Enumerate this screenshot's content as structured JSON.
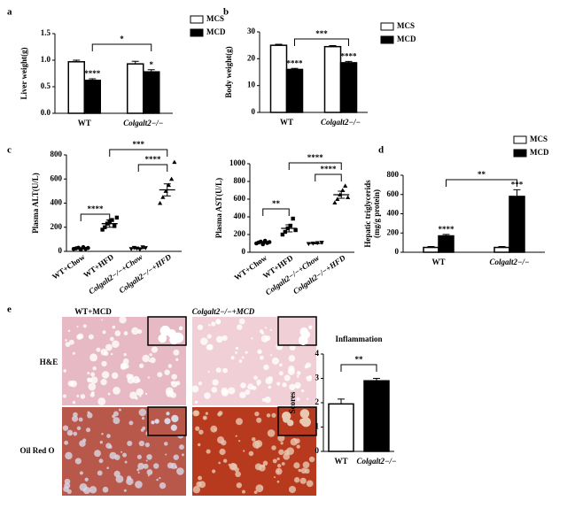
{
  "panel_labels": [
    "a",
    "b",
    "c",
    "d",
    "e"
  ],
  "histology": {
    "columns": [
      "WT+MCD",
      "Colgalt2−/−+MCD"
    ],
    "rows": [
      "H&E",
      "Oil Red O"
    ]
  },
  "chart_data": [
    {
      "type": "bar",
      "ylabel": "Liver weight(g)",
      "categories": [
        "WT",
        "Colgalt2−/−"
      ],
      "series": [
        {
          "name": "MCS",
          "color": "#ffffff",
          "values": [
            0.97,
            0.93
          ],
          "errors": [
            0.03,
            0.05
          ]
        },
        {
          "name": "MCD",
          "color": "#000000",
          "values": [
            0.62,
            0.78
          ],
          "errors": [
            0.03,
            0.04
          ]
        }
      ],
      "ylim": [
        0,
        1.5
      ],
      "yticks": [
        {
          "value": 0,
          "label": "0.0"
        },
        0.5,
        {
          "value": 1,
          "label": "1.0"
        },
        1.5
      ],
      "annotations": [
        "****",
        "*",
        "*"
      ],
      "legend": "top-right"
    },
    {
      "type": "bar",
      "ylabel": "Body weight(g)",
      "categories": [
        "WT",
        "Colgalt2−/−"
      ],
      "series": [
        {
          "name": "MCS",
          "color": "#ffffff",
          "values": [
            25,
            24.5
          ],
          "errors": [
            0.4,
            0.4
          ]
        },
        {
          "name": "MCD",
          "color": "#000000",
          "values": [
            16,
            18.5
          ],
          "errors": [
            0.4,
            0.5
          ]
        }
      ],
      "ylim": [
        0,
        30
      ],
      "yticks": [
        0,
        10,
        20,
        30
      ],
      "annotations": [
        "****",
        "****",
        "***"
      ],
      "legend": "top-right"
    },
    {
      "type": "scatter",
      "ylabel": "Plasma ALT(U/L)",
      "categories": [
        "WT+Chow",
        "WT+HFD",
        "Colgalt2−/−+Chow",
        "Colgalt2−/−+HFD"
      ],
      "points": [
        [
          20,
          25,
          30,
          15,
          35,
          20,
          28
        ],
        [
          180,
          200,
          230,
          250,
          260,
          210,
          280
        ],
        [
          20,
          30,
          25,
          15,
          35,
          28
        ],
        [
          400,
          450,
          500,
          550,
          600,
          740
        ]
      ],
      "means": [
        25,
        230,
        25,
        510
      ],
      "errors": [
        5,
        30,
        5,
        50
      ],
      "markers": [
        "circle",
        "square",
        "triangle-down",
        "triangle"
      ],
      "ylim": [
        0,
        800
      ],
      "yticks": [
        0,
        200,
        400,
        600,
        800
      ],
      "annotations": [
        "****",
        "****",
        "***"
      ]
    },
    {
      "type": "scatter",
      "ylabel": "Plasma AST(U/L)",
      "categories": [
        "WT+Chow",
        "WT+HFD",
        "Colgalt2−/−+Chow",
        "Colgalt2−/−+HFD"
      ],
      "points": [
        [
          100,
          110,
          120,
          90,
          130,
          105,
          115
        ],
        [
          200,
          230,
          270,
          300,
          380,
          250
        ],
        [
          95,
          100,
          105,
          110
        ],
        [
          560,
          600,
          650,
          700,
          750,
          620
        ]
      ],
      "means": [
        110,
        270,
        100,
        650
      ],
      "errors": [
        10,
        40,
        5,
        40
      ],
      "markers": [
        "circle",
        "square",
        "triangle-down",
        "triangle"
      ],
      "ylim": [
        0,
        1000
      ],
      "yticks": [
        0,
        200,
        400,
        600,
        800,
        1000
      ],
      "annotations": [
        "**",
        "****",
        "****"
      ]
    },
    {
      "type": "bar",
      "ylabel": [
        "Hepatic triglycerids",
        "(mg/g protein)"
      ],
      "categories": [
        "WT",
        "Colgalt2−/−"
      ],
      "series": [
        {
          "name": "MCS",
          "color": "#ffffff",
          "values": [
            50,
            50
          ],
          "errors": [
            10,
            10
          ]
        },
        {
          "name": "MCD",
          "color": "#000000",
          "values": [
            170,
            580
          ],
          "errors": [
            15,
            70
          ]
        }
      ],
      "ylim": [
        0,
        800
      ],
      "yticks": [
        0,
        200,
        400,
        600,
        800
      ],
      "annotations": [
        "****",
        "***",
        "**"
      ],
      "legend": "top-right"
    },
    {
      "type": "bar",
      "title": "Inflammation",
      "ylabel": "Scores",
      "categories": [
        "WT",
        "Colgalt2−/−"
      ],
      "values": [
        1.95,
        2.9
      ],
      "errors": [
        0.2,
        0.1
      ],
      "colors": [
        "#ffffff",
        "#000000"
      ],
      "ylim": [
        0,
        4
      ],
      "yticks": [
        0,
        1,
        2,
        3,
        4
      ],
      "annotations": [
        "**"
      ]
    }
  ]
}
